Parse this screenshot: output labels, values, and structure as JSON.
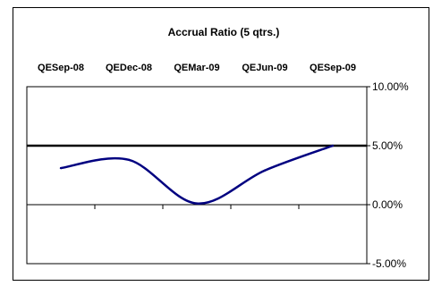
{
  "chart_data": {
    "type": "line",
    "title": "Accrual Ratio (5 qtrs.)",
    "xlabel": "",
    "ylabel": "",
    "categories": [
      "QESep-08",
      "QEDec-08",
      "QEMar-09",
      "QEJun-09",
      "QESep-09"
    ],
    "y_tick_labels": [
      "10.00%",
      "5.00%",
      "0.00%",
      "-5.00%"
    ],
    "y_ticks": [
      10,
      5,
      0,
      -5
    ],
    "ylim": [
      -5,
      10
    ],
    "x_axis_at": 0,
    "x_labels_position": "top",
    "y_axis_position": "right",
    "reference_line": 5,
    "grid": true,
    "line_color": "#000080",
    "series": [
      {
        "name": "",
        "values": [
          3.1,
          3.8,
          0.1,
          2.9,
          5.0
        ]
      }
    ]
  }
}
